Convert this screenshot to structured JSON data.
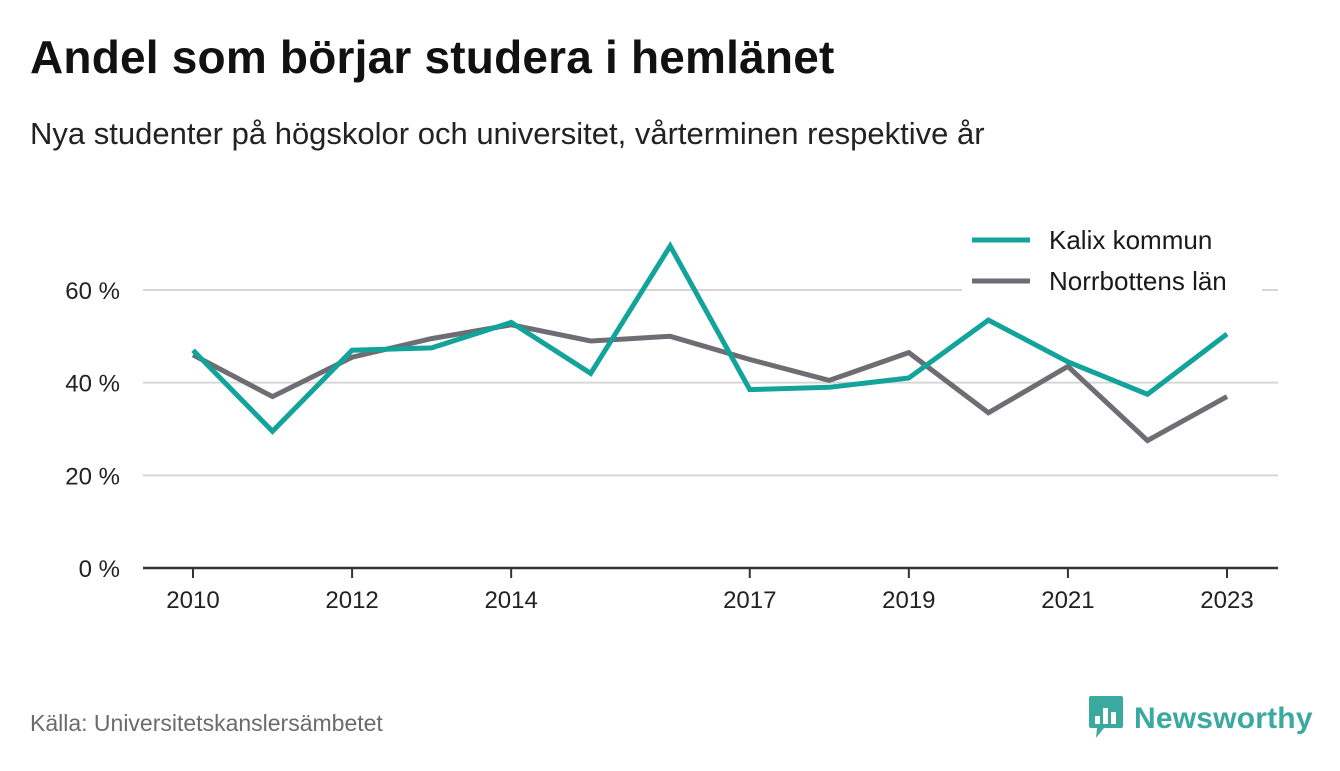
{
  "header": {
    "title": "Andel som börjar studera i hemlänet",
    "subtitle": "Nya studenter på högskolor och universitet, vårterminen respektive år"
  },
  "footer": {
    "source": "Källa: Universitetskanslersämbetet",
    "brand": "Newsworthy",
    "brand_icon": "bar-chart-speech-bubble-icon",
    "brand_color": "#3aa99f"
  },
  "chart_data": {
    "type": "line",
    "x": [
      2010,
      2011,
      2012,
      2013,
      2014,
      2015,
      2016,
      2017,
      2018,
      2019,
      2020,
      2021,
      2022,
      2023
    ],
    "x_tick_values": [
      2010,
      2012,
      2014,
      2017,
      2019,
      2021,
      2023
    ],
    "x_tick_labels": [
      "2010",
      "2012",
      "2014",
      "2017",
      "2019",
      "2021",
      "2023"
    ],
    "y_tick_values": [
      0,
      20,
      40,
      60
    ],
    "y_tick_labels": [
      "0 %",
      "20 %",
      "40 %",
      "60 %"
    ],
    "ylim": [
      0,
      65
    ],
    "grid": true,
    "legend_position": "top-right",
    "series": [
      {
        "name": "Kalix kommun",
        "color": "#12a39a",
        "values": [
          47,
          29.5,
          47,
          47.5,
          53,
          42,
          69.5,
          38.5,
          39,
          41,
          53.5,
          44.5,
          37.5,
          50.5
        ]
      },
      {
        "name": "Norrbottens län",
        "color": "#6e6d74",
        "values": [
          46,
          37,
          45.5,
          49.5,
          52.5,
          49,
          50,
          45,
          40.5,
          46.5,
          33.5,
          43.5,
          27.5,
          37
        ]
      }
    ]
  }
}
